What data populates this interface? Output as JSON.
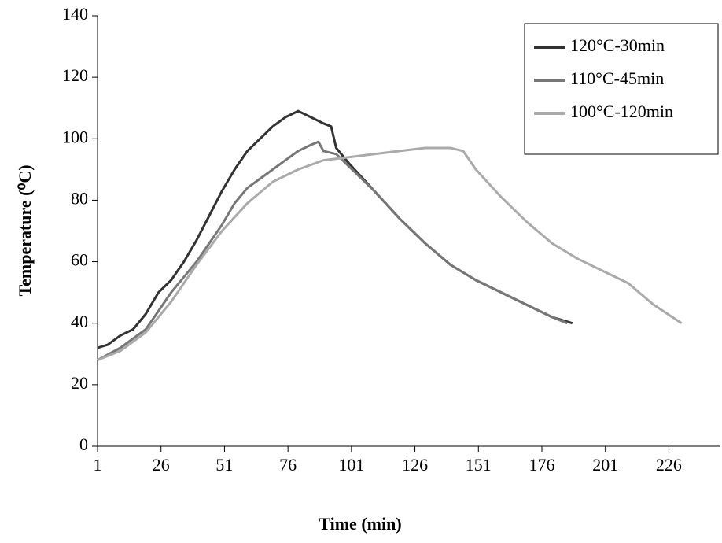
{
  "chart_data": {
    "type": "line",
    "x_label": "Time (min)",
    "y_label": "Temperature (⁰C)",
    "xlim": [
      1,
      246
    ],
    "xticks": [
      1,
      26,
      51,
      76,
      101,
      126,
      151,
      176,
      201,
      226
    ],
    "ylim": [
      0,
      140
    ],
    "yticks": [
      0,
      20,
      40,
      60,
      80,
      100,
      120,
      140
    ],
    "grid": false,
    "legend": "upper right",
    "series": [
      {
        "name": "120°C-30min",
        "color": "#333333",
        "x": [
          1,
          5,
          10,
          15,
          20,
          25,
          30,
          35,
          40,
          45,
          50,
          55,
          60,
          65,
          70,
          75,
          80,
          85,
          90,
          93,
          95,
          100,
          110,
          120,
          130,
          140,
          150,
          160,
          170,
          180,
          188
        ],
        "values": [
          32,
          33,
          36,
          38,
          43,
          50,
          54,
          60,
          67,
          75,
          83,
          90,
          96,
          100,
          104,
          107,
          109,
          107,
          105,
          104,
          97,
          92,
          83,
          74,
          66,
          59,
          54,
          50,
          46,
          42,
          40
        ]
      },
      {
        "name": "110°C-45min",
        "color": "#777777",
        "x": [
          1,
          10,
          20,
          25,
          30,
          40,
          50,
          55,
          60,
          65,
          70,
          75,
          80,
          85,
          88,
          90,
          95,
          100,
          110,
          120,
          130,
          140,
          150,
          160,
          170,
          180,
          186
        ],
        "values": [
          28,
          32,
          38,
          44,
          50,
          60,
          72,
          79,
          84,
          87,
          90,
          93,
          96,
          98,
          99,
          96,
          95,
          91,
          83,
          74,
          66,
          59,
          54,
          50,
          46,
          42,
          40
        ]
      },
      {
        "name": "100°C-120min",
        "color": "#aaaaaa",
        "x": [
          1,
          10,
          20,
          30,
          40,
          50,
          60,
          70,
          80,
          90,
          100,
          110,
          120,
          130,
          140,
          145,
          150,
          160,
          170,
          180,
          190,
          200,
          210,
          220,
          231
        ],
        "values": [
          28,
          31,
          37,
          47,
          59,
          70,
          79,
          86,
          90,
          93,
          94,
          95,
          96,
          97,
          97,
          96,
          90,
          81,
          73,
          66,
          61,
          57,
          53,
          46,
          40
        ]
      }
    ]
  }
}
